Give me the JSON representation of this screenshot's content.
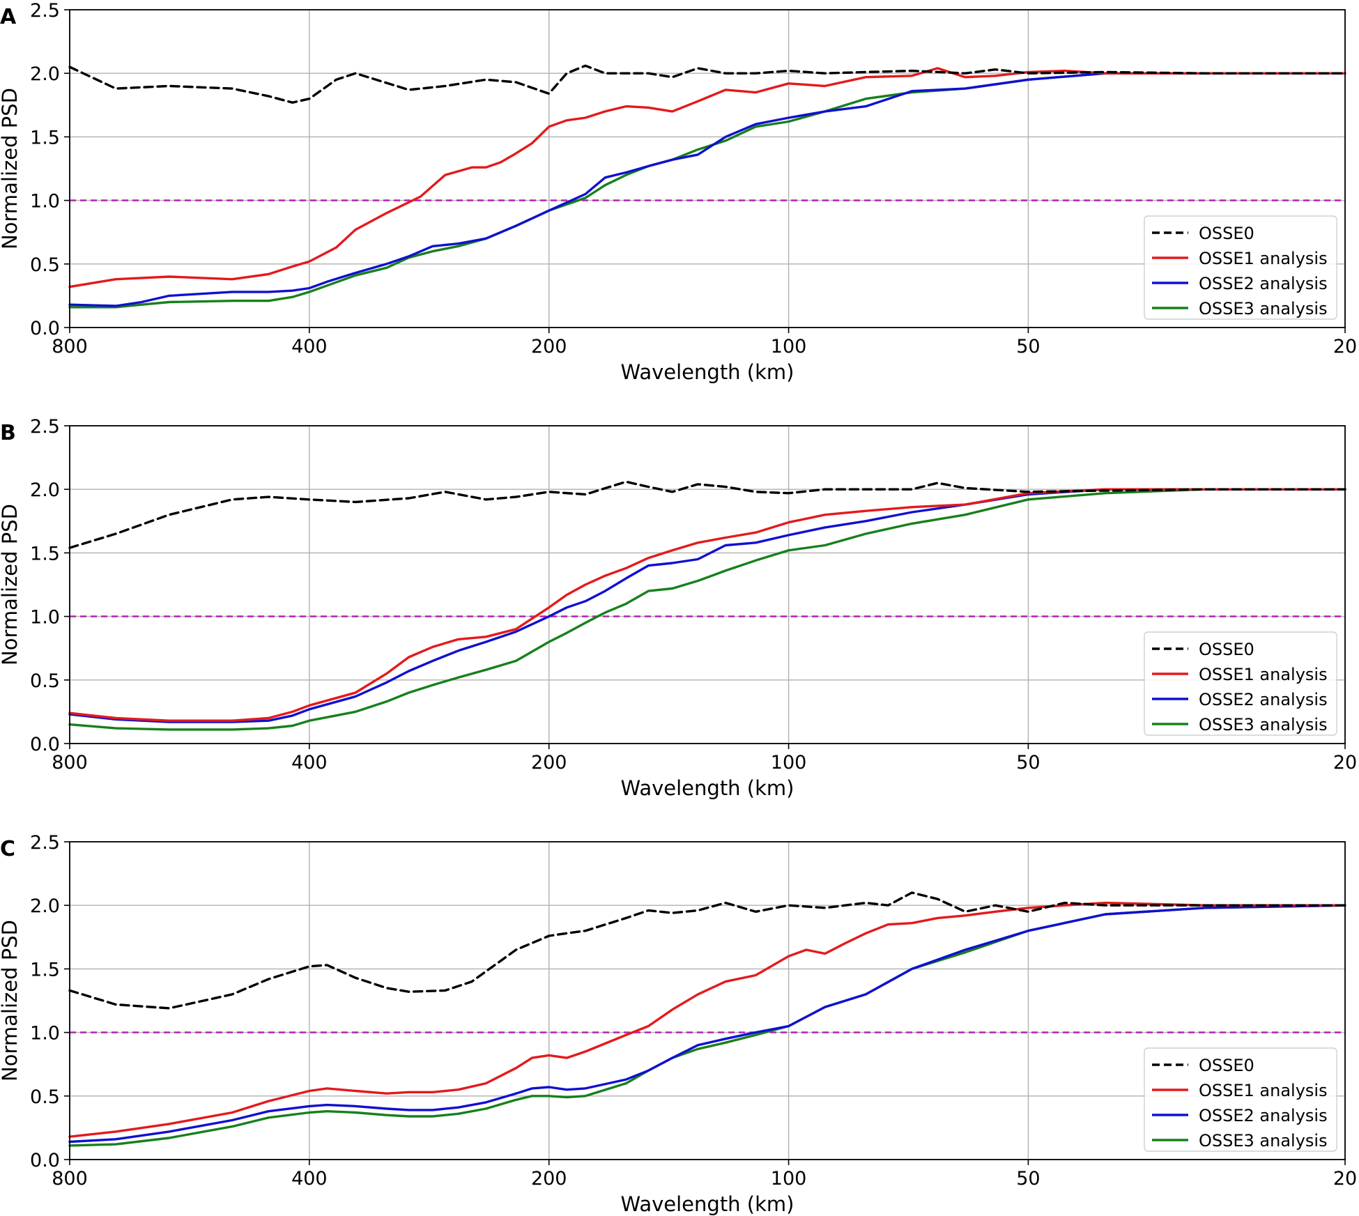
{
  "figure": {
    "ylabel": "Normalized PSD",
    "xlabel": "Wavelength (km)",
    "threshold": 1.0,
    "colors": {
      "OSSE0": "#000000",
      "OSSE1 analysis": "#e31a1c",
      "OSSE2 analysis": "#1010d0",
      "OSSE3 analysis": "#17801c",
      "threshold": "#b62ab6",
      "grid": "#b0b0b0"
    }
  },
  "chart_data": [
    {
      "type": "line",
      "panel": "A",
      "xlabel": "Wavelength (km)",
      "ylabel": "Normalized PSD",
      "xscale": "log (reversed, wavenumber axis)",
      "xlim": [
        800,
        20
      ],
      "ylim": [
        0.0,
        2.5
      ],
      "xticks": [
        800,
        400,
        200,
        100,
        50,
        20
      ],
      "yticks": [
        "0.0",
        "0.5",
        "1.0",
        "1.5",
        "2.0",
        "2.5"
      ],
      "grid": true,
      "legend_position": "lower-right",
      "threshold_line": 1.0,
      "series": [
        {
          "name": "OSSE0",
          "style": "dashed",
          "x": [
            800,
            700,
            600,
            500,
            450,
            420,
            400,
            370,
            350,
            300,
            270,
            240,
            220,
            200,
            190,
            180,
            170,
            150,
            140,
            130,
            120,
            110,
            100,
            90,
            80,
            70,
            60,
            55,
            50,
            40,
            30,
            25,
            20
          ],
          "y": [
            2.05,
            1.88,
            1.9,
            1.88,
            1.82,
            1.77,
            1.8,
            1.95,
            2.0,
            1.87,
            1.9,
            1.95,
            1.93,
            1.84,
            2.0,
            2.06,
            2.0,
            2.0,
            1.97,
            2.04,
            2.0,
            2.0,
            2.02,
            2.0,
            2.01,
            2.02,
            2.0,
            2.03,
            2.0,
            2.01,
            2.0,
            2.0,
            2.0
          ]
        },
        {
          "name": "OSSE1 analysis",
          "style": "solid",
          "x": [
            800,
            700,
            600,
            500,
            450,
            420,
            400,
            370,
            350,
            320,
            290,
            270,
            250,
            240,
            230,
            220,
            210,
            200,
            190,
            180,
            170,
            160,
            150,
            140,
            130,
            120,
            110,
            100,
            90,
            80,
            70,
            65,
            60,
            55,
            50,
            45,
            40,
            30,
            20
          ],
          "y": [
            0.32,
            0.38,
            0.4,
            0.38,
            0.42,
            0.48,
            0.52,
            0.63,
            0.77,
            0.9,
            1.03,
            1.2,
            1.26,
            1.26,
            1.3,
            1.37,
            1.45,
            1.58,
            1.63,
            1.65,
            1.7,
            1.74,
            1.73,
            1.7,
            1.78,
            1.87,
            1.85,
            1.92,
            1.9,
            1.97,
            1.98,
            2.04,
            1.97,
            1.98,
            2.01,
            2.02,
            2.0,
            2.0,
            2.0
          ]
        },
        {
          "name": "OSSE2 analysis",
          "style": "solid",
          "x": [
            800,
            700,
            650,
            600,
            500,
            450,
            420,
            400,
            380,
            350,
            320,
            300,
            280,
            260,
            240,
            220,
            200,
            180,
            170,
            160,
            150,
            140,
            130,
            120,
            110,
            100,
            90,
            80,
            70,
            60,
            50,
            40,
            30,
            20
          ],
          "y": [
            0.18,
            0.17,
            0.2,
            0.25,
            0.28,
            0.28,
            0.29,
            0.31,
            0.36,
            0.43,
            0.5,
            0.56,
            0.64,
            0.66,
            0.7,
            0.8,
            0.92,
            1.05,
            1.18,
            1.22,
            1.27,
            1.32,
            1.36,
            1.5,
            1.6,
            1.65,
            1.7,
            1.74,
            1.86,
            1.88,
            1.95,
            2.0,
            2.0,
            2.0
          ]
        },
        {
          "name": "OSSE3 analysis",
          "style": "solid",
          "x": [
            800,
            700,
            650,
            600,
            500,
            450,
            420,
            400,
            380,
            350,
            320,
            300,
            280,
            260,
            240,
            220,
            200,
            180,
            170,
            160,
            150,
            140,
            130,
            120,
            110,
            100,
            90,
            80,
            70,
            60,
            50,
            40,
            30,
            20
          ],
          "y": [
            0.16,
            0.16,
            0.18,
            0.2,
            0.21,
            0.21,
            0.24,
            0.28,
            0.33,
            0.41,
            0.47,
            0.55,
            0.6,
            0.64,
            0.7,
            0.8,
            0.92,
            1.02,
            1.12,
            1.2,
            1.27,
            1.32,
            1.4,
            1.47,
            1.58,
            1.62,
            1.7,
            1.8,
            1.85,
            1.88,
            1.95,
            2.0,
            2.0,
            2.0
          ]
        }
      ]
    },
    {
      "type": "line",
      "panel": "B",
      "xlabel": "Wavelength (km)",
      "ylabel": "Normalized PSD",
      "xscale": "log (reversed, wavenumber axis)",
      "xlim": [
        800,
        20
      ],
      "ylim": [
        0.0,
        2.5
      ],
      "xticks": [
        800,
        400,
        200,
        100,
        50,
        20
      ],
      "yticks": [
        "0.0",
        "0.5",
        "1.0",
        "1.5",
        "2.0",
        "2.5"
      ],
      "grid": true,
      "legend_position": "lower-right",
      "threshold_line": 1.0,
      "series": [
        {
          "name": "OSSE0",
          "style": "dashed",
          "x": [
            800,
            700,
            600,
            500,
            450,
            400,
            350,
            300,
            270,
            240,
            220,
            200,
            180,
            160,
            150,
            140,
            130,
            120,
            110,
            100,
            90,
            80,
            70,
            65,
            60,
            50,
            40,
            30,
            20
          ],
          "y": [
            1.54,
            1.65,
            1.8,
            1.92,
            1.94,
            1.92,
            1.9,
            1.93,
            1.98,
            1.92,
            1.94,
            1.98,
            1.96,
            2.06,
            2.02,
            1.98,
            2.04,
            2.02,
            1.98,
            1.97,
            2.0,
            2.0,
            2.0,
            2.05,
            2.01,
            1.98,
            1.99,
            2.0,
            2.0
          ]
        },
        {
          "name": "OSSE1 analysis",
          "style": "solid",
          "x": [
            800,
            700,
            600,
            500,
            450,
            420,
            400,
            350,
            320,
            300,
            280,
            260,
            240,
            220,
            200,
            190,
            180,
            170,
            160,
            150,
            140,
            130,
            120,
            110,
            100,
            90,
            80,
            70,
            60,
            50,
            40,
            30,
            20
          ],
          "y": [
            0.24,
            0.2,
            0.18,
            0.18,
            0.2,
            0.25,
            0.3,
            0.4,
            0.55,
            0.68,
            0.76,
            0.82,
            0.84,
            0.9,
            1.07,
            1.17,
            1.25,
            1.32,
            1.38,
            1.46,
            1.52,
            1.58,
            1.62,
            1.66,
            1.74,
            1.8,
            1.83,
            1.86,
            1.88,
            1.97,
            2.0,
            2.0,
            2.0
          ]
        },
        {
          "name": "OSSE2 analysis",
          "style": "solid",
          "x": [
            800,
            700,
            600,
            500,
            450,
            420,
            400,
            350,
            320,
            300,
            280,
            260,
            240,
            220,
            200,
            190,
            180,
            170,
            160,
            150,
            140,
            130,
            120,
            110,
            100,
            90,
            80,
            70,
            60,
            50,
            40,
            30,
            20
          ],
          "y": [
            0.23,
            0.19,
            0.17,
            0.17,
            0.18,
            0.22,
            0.27,
            0.37,
            0.48,
            0.57,
            0.65,
            0.73,
            0.8,
            0.88,
            1.0,
            1.07,
            1.12,
            1.2,
            1.3,
            1.4,
            1.42,
            1.45,
            1.56,
            1.58,
            1.64,
            1.7,
            1.75,
            1.82,
            1.88,
            1.96,
            2.0,
            2.0,
            2.0
          ]
        },
        {
          "name": "OSSE3 analysis",
          "style": "solid",
          "x": [
            800,
            700,
            600,
            500,
            450,
            420,
            400,
            350,
            320,
            300,
            280,
            260,
            240,
            220,
            200,
            190,
            180,
            170,
            160,
            150,
            140,
            130,
            120,
            110,
            100,
            90,
            80,
            70,
            60,
            50,
            40,
            30,
            20
          ],
          "y": [
            0.15,
            0.12,
            0.11,
            0.11,
            0.12,
            0.14,
            0.18,
            0.25,
            0.33,
            0.4,
            0.46,
            0.52,
            0.58,
            0.65,
            0.8,
            0.87,
            0.95,
            1.03,
            1.1,
            1.2,
            1.22,
            1.28,
            1.36,
            1.44,
            1.52,
            1.56,
            1.65,
            1.73,
            1.8,
            1.92,
            1.97,
            2.0,
            2.0
          ]
        }
      ]
    },
    {
      "type": "line",
      "panel": "C",
      "xlabel": "Wavelength (km)",
      "ylabel": "Normalized PSD",
      "xscale": "log (reversed, wavenumber axis)",
      "xlim": [
        800,
        20
      ],
      "ylim": [
        0.0,
        2.5
      ],
      "xticks": [
        800,
        400,
        200,
        100,
        50,
        20
      ],
      "yticks": [
        "0.0",
        "0.5",
        "1.0",
        "1.5",
        "2.0",
        "2.5"
      ],
      "grid": true,
      "legend_position": "lower-right",
      "threshold_line": 1.0,
      "series": [
        {
          "name": "OSSE0",
          "style": "dashed",
          "x": [
            800,
            700,
            600,
            500,
            450,
            400,
            380,
            350,
            320,
            300,
            270,
            250,
            220,
            200,
            190,
            180,
            160,
            150,
            140,
            130,
            120,
            110,
            100,
            90,
            80,
            75,
            70,
            65,
            60,
            55,
            50,
            45,
            40,
            30,
            20
          ],
          "y": [
            1.33,
            1.22,
            1.19,
            1.3,
            1.42,
            1.52,
            1.53,
            1.43,
            1.35,
            1.32,
            1.33,
            1.4,
            1.65,
            1.76,
            1.78,
            1.8,
            1.9,
            1.96,
            1.94,
            1.96,
            2.02,
            1.95,
            2.0,
            1.98,
            2.02,
            2.0,
            2.1,
            2.05,
            1.95,
            2.0,
            1.95,
            2.02,
            2.0,
            2.0,
            2.0
          ]
        },
        {
          "name": "OSSE1 analysis",
          "style": "solid",
          "x": [
            800,
            700,
            600,
            500,
            450,
            400,
            380,
            350,
            320,
            300,
            280,
            260,
            240,
            220,
            210,
            200,
            190,
            180,
            160,
            150,
            140,
            130,
            120,
            110,
            100,
            95,
            90,
            85,
            80,
            75,
            70,
            65,
            60,
            55,
            50,
            45,
            40,
            30,
            20
          ],
          "y": [
            0.18,
            0.22,
            0.28,
            0.37,
            0.46,
            0.54,
            0.56,
            0.54,
            0.52,
            0.53,
            0.53,
            0.55,
            0.6,
            0.72,
            0.8,
            0.82,
            0.8,
            0.85,
            0.98,
            1.05,
            1.18,
            1.3,
            1.4,
            1.45,
            1.6,
            1.65,
            1.62,
            1.7,
            1.78,
            1.85,
            1.86,
            1.9,
            1.92,
            1.95,
            1.98,
            2.0,
            2.02,
            2.0,
            2.0
          ]
        },
        {
          "name": "OSSE2 analysis",
          "style": "solid",
          "x": [
            800,
            700,
            600,
            500,
            450,
            400,
            380,
            350,
            320,
            300,
            280,
            260,
            240,
            220,
            210,
            200,
            190,
            180,
            160,
            150,
            140,
            130,
            120,
            110,
            100,
            90,
            80,
            70,
            60,
            50,
            40,
            30,
            20
          ],
          "y": [
            0.14,
            0.16,
            0.22,
            0.31,
            0.38,
            0.42,
            0.43,
            0.42,
            0.4,
            0.39,
            0.39,
            0.41,
            0.45,
            0.52,
            0.56,
            0.57,
            0.55,
            0.56,
            0.63,
            0.7,
            0.8,
            0.9,
            0.95,
            1.0,
            1.05,
            1.2,
            1.3,
            1.5,
            1.65,
            1.8,
            1.93,
            1.98,
            2.0
          ]
        },
        {
          "name": "OSSE3 analysis",
          "style": "solid",
          "x": [
            800,
            700,
            600,
            500,
            450,
            400,
            380,
            350,
            320,
            300,
            280,
            260,
            240,
            220,
            210,
            200,
            190,
            180,
            160,
            150,
            140,
            130,
            120,
            110,
            100,
            90,
            80,
            70,
            60,
            50,
            40,
            30,
            20
          ],
          "y": [
            0.11,
            0.12,
            0.17,
            0.26,
            0.33,
            0.37,
            0.38,
            0.37,
            0.35,
            0.34,
            0.34,
            0.36,
            0.4,
            0.47,
            0.5,
            0.5,
            0.49,
            0.5,
            0.6,
            0.7,
            0.8,
            0.87,
            0.92,
            0.98,
            1.05,
            1.2,
            1.3,
            1.5,
            1.63,
            1.8,
            1.93,
            1.98,
            2.0
          ]
        }
      ]
    }
  ]
}
